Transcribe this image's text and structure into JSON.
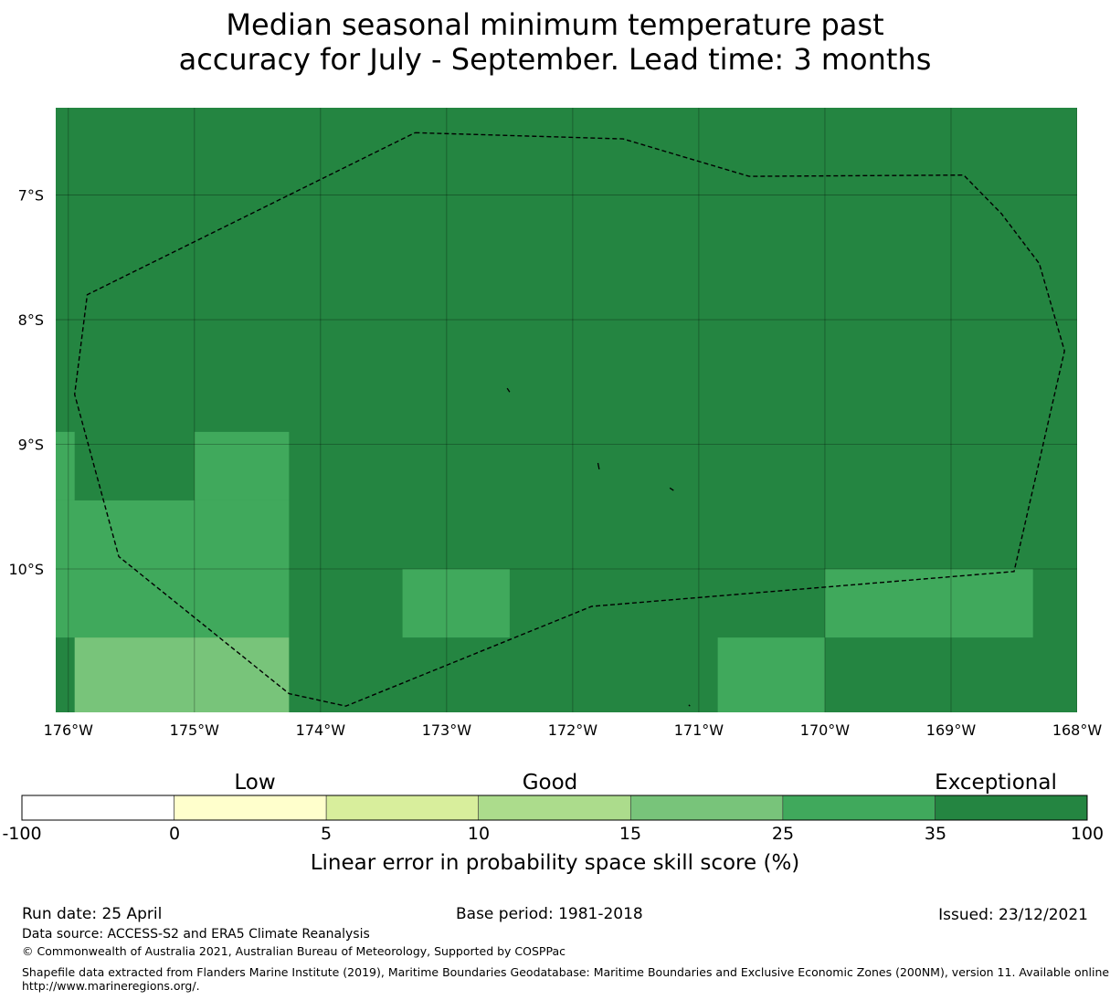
{
  "title": {
    "line1": "Median seasonal minimum temperature past",
    "line2": "accuracy for July - September. Lead time: 3 months"
  },
  "map": {
    "lon_range": [
      -176.1,
      -168.0
    ],
    "lat_range": [
      -11.15,
      -6.3
    ],
    "background_color": "#248541",
    "x_tick_labels": [
      "176°W",
      "175°W",
      "174°W",
      "173°W",
      "172°W",
      "171°W",
      "170°W",
      "169°W",
      "168°W"
    ],
    "x_tick_values": [
      -176,
      -175,
      -174,
      -173,
      -172,
      -171,
      -170,
      -169,
      -168
    ],
    "y_tick_labels": [
      "7°S",
      "8°S",
      "9°S",
      "10°S"
    ],
    "y_tick_values": [
      -7,
      -8,
      -9,
      -10
    ],
    "cells": [
      {
        "lon": [
          -176.1,
          -175.95
        ],
        "lat": [
          -9.45,
          -8.9
        ],
        "category": "25-35",
        "color": "#40a95c"
      },
      {
        "lon": [
          -176.1,
          -174.25
        ],
        "lat": [
          -10.55,
          -9.45
        ],
        "category": "25-35",
        "color": "#40a95c"
      },
      {
        "lon": [
          -175.0,
          -174.25
        ],
        "lat": [
          -9.45,
          -8.9
        ],
        "category": "25-35",
        "color": "#40a95c"
      },
      {
        "lon": [
          -175.95,
          -174.25
        ],
        "lat": [
          -11.15,
          -10.55
        ],
        "category": "15-25",
        "color": "#78c47a"
      },
      {
        "lon": [
          -173.35,
          -172.5
        ],
        "lat": [
          -10.55,
          -10.0
        ],
        "category": "25-35",
        "color": "#40a95c"
      },
      {
        "lon": [
          -170.0,
          -168.35
        ],
        "lat": [
          -10.55,
          -10.0
        ],
        "category": "25-35",
        "color": "#40a95c"
      },
      {
        "lon": [
          -170.85,
          -170.0
        ],
        "lat": [
          -11.15,
          -10.55
        ],
        "category": "25-35",
        "color": "#40a95c"
      }
    ],
    "eez_boundary": [
      [
        -173.25,
        -6.5
      ],
      [
        -171.6,
        -6.55
      ],
      [
        -170.6,
        -6.85
      ],
      [
        -168.9,
        -6.84
      ],
      [
        -168.6,
        -7.15
      ],
      [
        -168.3,
        -7.55
      ],
      [
        -168.1,
        -8.25
      ],
      [
        -168.5,
        -10.02
      ],
      [
        -171.85,
        -10.3
      ],
      [
        -173.8,
        -11.1
      ],
      [
        -174.25,
        -11.0
      ],
      [
        -175.6,
        -9.9
      ],
      [
        -175.95,
        -8.6
      ],
      [
        -175.85,
        -7.8
      ],
      [
        -173.25,
        -6.5
      ]
    ],
    "islands": [
      [
        [
          -172.52,
          -8.55
        ],
        [
          -172.5,
          -8.58
        ]
      ],
      [
        [
          -171.8,
          -9.15
        ],
        [
          -171.79,
          -9.2
        ]
      ],
      [
        [
          -171.23,
          -9.35
        ],
        [
          -171.2,
          -9.37
        ]
      ],
      [
        [
          -171.08,
          -11.09
        ],
        [
          -171.07,
          -11.1
        ]
      ]
    ]
  },
  "colorbar": {
    "categories": [
      "Low",
      "Good",
      "Exceptional"
    ],
    "tick_labels": [
      "-100",
      "0",
      "5",
      "10",
      "15",
      "25",
      "35",
      "100"
    ],
    "colors": [
      "#ffffff",
      "#ffffcc",
      "#d8ee9c",
      "#acdc8c",
      "#78c47a",
      "#40a95c",
      "#248541"
    ],
    "label": "Linear error in probability space skill score (%)"
  },
  "footer": {
    "run_date": "Run date: 25 April",
    "base_period": "Base period: 1981-2018",
    "issued": "Issued: 23/12/2021",
    "data_source": "Data source: ACCESS-S2 and ERA5 Climate Reanalysis",
    "copyright": "© Commonwealth of Australia 2021, Australian Bureau of Meteorology, Supported by COSPPac",
    "shapefile_line1": "Shapefile data extracted from Flanders Marine Institute (2019), Maritime Boundaries Geodatabase: Maritime Boundaries and Exclusive Economic Zones (200NM), version 11. Available online at",
    "shapefile_line2": "http://www.marineregions.org/."
  }
}
